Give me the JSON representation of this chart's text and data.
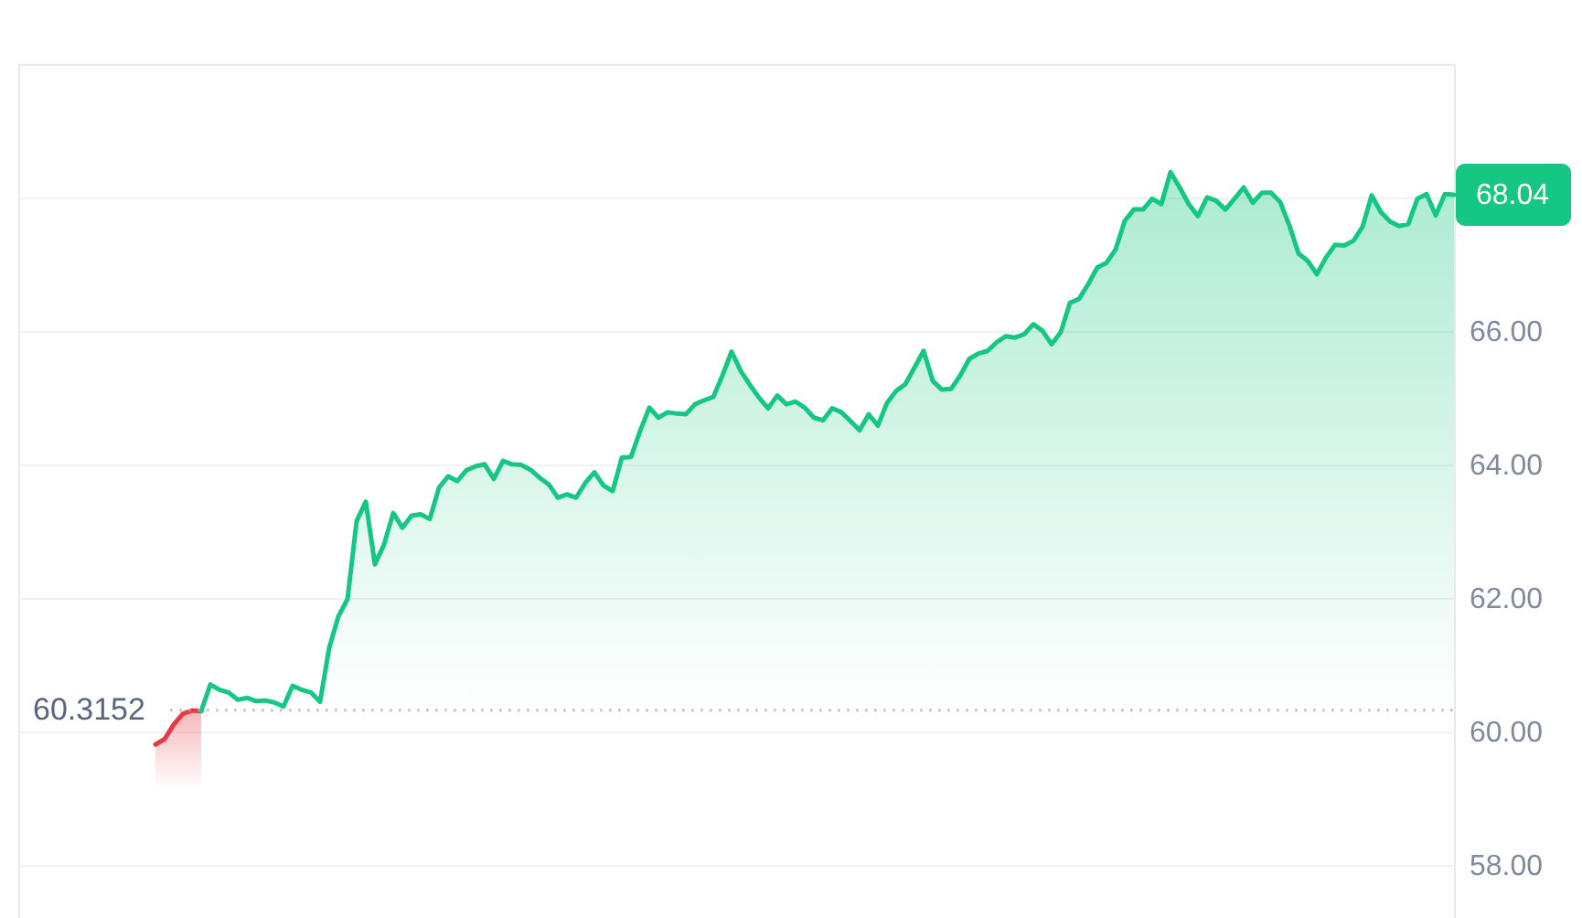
{
  "chart_data": {
    "type": "area",
    "categories": [
      null,
      null,
      null,
      null,
      null,
      null,
      null,
      null,
      null,
      null,
      null,
      null,
      null,
      null,
      null,
      null,
      null,
      null,
      null,
      null,
      null,
      null,
      null,
      null,
      null,
      null,
      null,
      null,
      null,
      null,
      null,
      null,
      null,
      null,
      null,
      null,
      null,
      null,
      null,
      null,
      null,
      null,
      null,
      null,
      null,
      null,
      null,
      null,
      null,
      null,
      null,
      null,
      null,
      null,
      null,
      null,
      null,
      null,
      null,
      null,
      null,
      null,
      null,
      null,
      null,
      null,
      null,
      null,
      null,
      null,
      null,
      null,
      null,
      null,
      null,
      null,
      null,
      null,
      null,
      null,
      null,
      null,
      null,
      null,
      null,
      null,
      null,
      null,
      null,
      null,
      null,
      null,
      null,
      null,
      null,
      null,
      null,
      null,
      null,
      null,
      null,
      null,
      null,
      null,
      null,
      null,
      null,
      null,
      null,
      null,
      null,
      null,
      null,
      null,
      null,
      null,
      null,
      null,
      null,
      null,
      null,
      null,
      null,
      null,
      null,
      null,
      null,
      null,
      null,
      null,
      null,
      null,
      null,
      null,
      null,
      null,
      null,
      null,
      null,
      null,
      null,
      null,
      null,
      null,
      null,
      null,
      null,
      null,
      null,
      null,
      null,
      null,
      null,
      null,
      null,
      null,
      null,
      null
    ],
    "series": [
      {
        "color": "#ea3943",
        "values": [
          null,
          null,
          null,
          null,
          null,
          null,
          null,
          null,
          null,
          null,
          null,
          null,
          null,
          null,
          null,
          59.8,
          59.88,
          60.1,
          60.26,
          60.31,
          60.3,
          null,
          null,
          null,
          null,
          null,
          null,
          null,
          null,
          null,
          null,
          null,
          null,
          null,
          null,
          null,
          null,
          null,
          null,
          null,
          null,
          null,
          null,
          null,
          null,
          null,
          null,
          null,
          null,
          null,
          null,
          null,
          null,
          null,
          null,
          null,
          null,
          null,
          null,
          null,
          null,
          null,
          null,
          null,
          null,
          null,
          null,
          null,
          null,
          null,
          null,
          null,
          null,
          null,
          null,
          null,
          null,
          null,
          null,
          null,
          null,
          null,
          null,
          null,
          null,
          null,
          null,
          null,
          null,
          null,
          null,
          null,
          null,
          null,
          null,
          null,
          null,
          null,
          null,
          null,
          null,
          null,
          null,
          null,
          null,
          null,
          null,
          null,
          null,
          null,
          null,
          null,
          null,
          null,
          null,
          null,
          null,
          null,
          null,
          null,
          null,
          null,
          null,
          null,
          null,
          null,
          null,
          null,
          null,
          null,
          null,
          null,
          null,
          null,
          null,
          null,
          null,
          null,
          null,
          null,
          null,
          null,
          null,
          null,
          null,
          null,
          null,
          null,
          null,
          null,
          null,
          null,
          null,
          null,
          null,
          null,
          null,
          null
        ]
      },
      {
        "color": "#16c784",
        "values": [
          null,
          null,
          null,
          null,
          null,
          null,
          null,
          null,
          null,
          null,
          null,
          null,
          null,
          null,
          null,
          null,
          null,
          null,
          null,
          null,
          60.3,
          60.7,
          60.62,
          60.58,
          60.47,
          60.5,
          60.45,
          60.46,
          60.43,
          60.37,
          60.68,
          60.62,
          60.58,
          60.44,
          61.25,
          61.72,
          61.98,
          63.15,
          63.44,
          62.5,
          62.8,
          63.27,
          63.05,
          63.23,
          63.25,
          63.18,
          63.65,
          63.82,
          63.75,
          63.91,
          63.97,
          64.0,
          63.78,
          64.05,
          64.0,
          63.99,
          63.92,
          63.8,
          63.7,
          63.5,
          63.55,
          63.5,
          63.72,
          63.88,
          63.68,
          63.6,
          64.1,
          64.11,
          64.5,
          64.85,
          64.7,
          64.78,
          64.76,
          64.75,
          64.9,
          64.96,
          65.01,
          65.33,
          65.69,
          65.4,
          65.19,
          65.0,
          64.84,
          65.03,
          64.9,
          64.94,
          64.85,
          64.7,
          64.66,
          64.84,
          64.78,
          64.65,
          64.51,
          64.75,
          64.58,
          64.92,
          65.1,
          65.2,
          65.45,
          65.7,
          65.25,
          65.12,
          65.13,
          65.33,
          65.58,
          65.66,
          65.7,
          65.83,
          65.92,
          65.9,
          65.95,
          66.1,
          66.0,
          65.8,
          65.98,
          66.42,
          66.48,
          66.7,
          66.95,
          67.02,
          67.22,
          67.65,
          67.82,
          67.82,
          67.98,
          67.9,
          68.38,
          68.15,
          67.9,
          67.72,
          68.0,
          67.95,
          67.82,
          67.98,
          68.15,
          67.92,
          68.07,
          68.07,
          67.93,
          67.58,
          67.16,
          67.05,
          66.85,
          67.1,
          67.29,
          67.28,
          67.35,
          67.56,
          68.03,
          67.78,
          67.64,
          67.57,
          67.6,
          67.98,
          68.05,
          67.73,
          68.05,
          68.04
        ]
      }
    ],
    "ylim": [
      57.2,
      70
    ],
    "yticks": [
      {
        "value": 58,
        "label": "58.00"
      },
      {
        "value": 60,
        "label": "60.00"
      },
      {
        "value": 62,
        "label": "62.00"
      },
      {
        "value": 64,
        "label": "64.00"
      },
      {
        "value": 66,
        "label": "66.00"
      },
      {
        "value": 68,
        "label": null
      }
    ],
    "grid": "y",
    "ref_lines": [
      {
        "axis": "y",
        "value": 60.3152,
        "label": "60.3152",
        "line_style": "dotted",
        "color": "#a6b0c3"
      }
    ],
    "annotations": [
      "68.04"
    ]
  }
}
